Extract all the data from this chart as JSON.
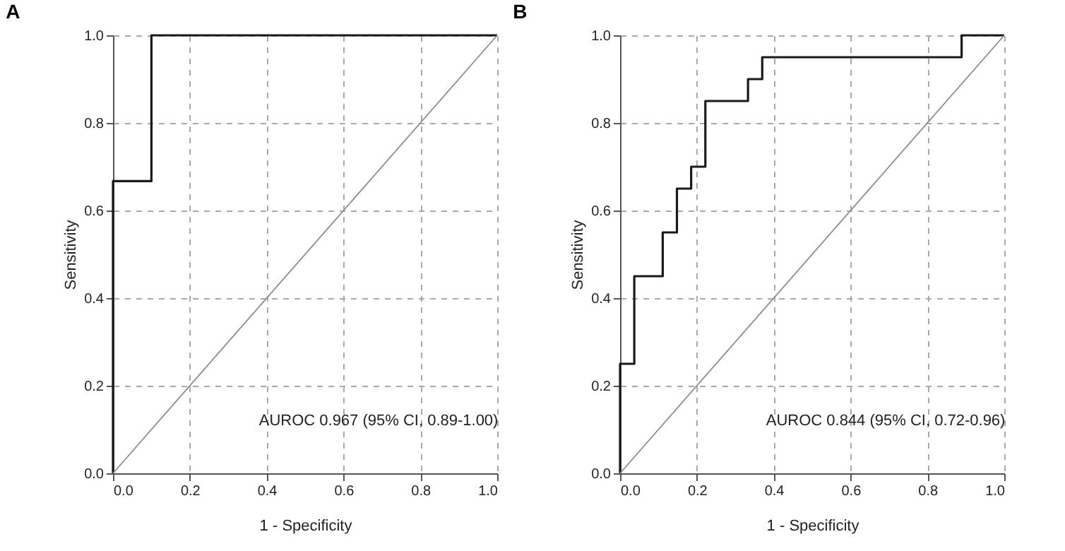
{
  "chart_data": [
    {
      "type": "line",
      "title": "A",
      "xlabel": "1 - Specificity",
      "ylabel": "Sensitivity",
      "xlim": [
        0,
        1
      ],
      "ylim": [
        0,
        1
      ],
      "xticks": [
        {
          "value": 0,
          "label": "0.0"
        },
        {
          "value": 0.2,
          "label": "0.2"
        },
        {
          "value": 0.4,
          "label": "0.4"
        },
        {
          "value": 0.6,
          "label": "0.6"
        },
        {
          "value": 0.8,
          "label": "0.8"
        },
        {
          "value": 1,
          "label": "1.0"
        }
      ],
      "yticks": [
        {
          "value": 0,
          "label": "0.0"
        },
        {
          "value": 0.2,
          "label": "0.2"
        },
        {
          "value": 0.4,
          "label": "0.4"
        },
        {
          "value": 0.6,
          "label": "0.6"
        },
        {
          "value": 0.8,
          "label": "0.8"
        },
        {
          "value": 1,
          "label": "1.0"
        }
      ],
      "grid": true,
      "annotations": [
        "AUROC 0.967 (95% CI, 0.89-1.00)"
      ],
      "series": [
        {
          "color": "#1a1a1a",
          "x": [
            0,
            0,
            0.1,
            0.1,
            1
          ],
          "values": [
            0,
            0.667,
            0.667,
            1,
            1
          ]
        },
        {
          "color": "#8c8c8c",
          "x": [
            0,
            1
          ],
          "values": [
            0,
            1
          ]
        }
      ]
    },
    {
      "type": "line",
      "title": "B",
      "xlabel": "1 - Specificity",
      "ylabel": "Sensitivity",
      "xlim": [
        0,
        1
      ],
      "ylim": [
        0,
        1
      ],
      "xticks": [
        {
          "value": 0,
          "label": "0.0"
        },
        {
          "value": 0.2,
          "label": "0.2"
        },
        {
          "value": 0.4,
          "label": "0.4"
        },
        {
          "value": 0.6,
          "label": "0.6"
        },
        {
          "value": 0.8,
          "label": "0.8"
        },
        {
          "value": 1,
          "label": "1.0"
        }
      ],
      "yticks": [
        {
          "value": 0,
          "label": "0.0"
        },
        {
          "value": 0.2,
          "label": "0.2"
        },
        {
          "value": 0.4,
          "label": "0.4"
        },
        {
          "value": 0.6,
          "label": "0.6"
        },
        {
          "value": 0.8,
          "label": "0.8"
        },
        {
          "value": 1,
          "label": "1.0"
        }
      ],
      "grid": true,
      "annotations": [
        "AUROC 0.844 (95% CI, 0.72-0.96)"
      ],
      "series": [
        {
          "color": "#1a1a1a",
          "x": [
            0,
            0,
            0.037,
            0.037,
            0.111,
            0.111,
            0.148,
            0.148,
            0.185,
            0.185,
            0.222,
            0.222,
            0.333,
            0.333,
            0.37,
            0.37,
            0.889,
            0.889,
            1
          ],
          "values": [
            0,
            0.25,
            0.25,
            0.45,
            0.45,
            0.55,
            0.55,
            0.65,
            0.65,
            0.7,
            0.7,
            0.85,
            0.85,
            0.9,
            0.9,
            0.95,
            0.95,
            1,
            1
          ]
        },
        {
          "color": "#8c8c8c",
          "x": [
            0,
            1
          ],
          "values": [
            0,
            1
          ]
        }
      ]
    }
  ]
}
